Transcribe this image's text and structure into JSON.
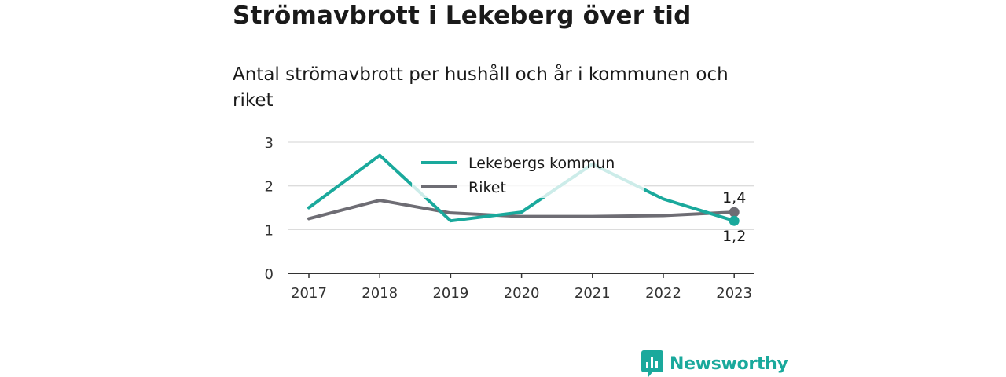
{
  "title": "Strömavbrott i Lekeberg över tid",
  "subtitle": "Antal strömavbrott per hushåll och år i kommunen och riket",
  "brand": {
    "name": "Newsworthy",
    "icon": "newsworthy-logo-icon",
    "color": "#1aa99c"
  },
  "chart_data": {
    "type": "line",
    "x": [
      "2017",
      "2018",
      "2019",
      "2020",
      "2021",
      "2022",
      "2023"
    ],
    "yticks": [
      0,
      1,
      2,
      3
    ],
    "ylim": [
      0,
      3
    ],
    "grid": true,
    "legend_position": "top-center",
    "series": [
      {
        "name": "Lekebergs kommun",
        "color": "#1aa99c",
        "values": [
          1.5,
          2.7,
          1.2,
          1.4,
          2.5,
          1.7,
          1.2
        ],
        "end_label": "1,2"
      },
      {
        "name": "Riket",
        "color": "#6e6d74",
        "values": [
          1.25,
          1.67,
          1.38,
          1.3,
          1.3,
          1.32,
          1.4
        ],
        "end_label": "1,4"
      }
    ]
  }
}
